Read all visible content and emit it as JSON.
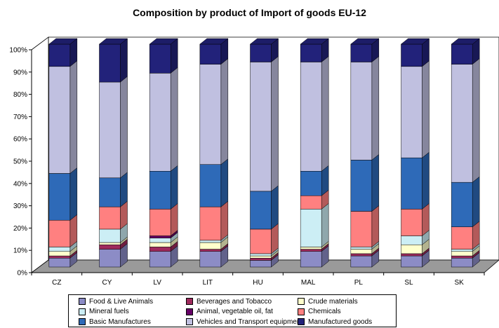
{
  "chart_data": {
    "type": "bar",
    "stacked": true,
    "title": "Composition by product of Import of goods EU-12",
    "categories": [
      "CZ",
      "CY",
      "LV",
      "LIT",
      "HU",
      "MAL",
      "PL",
      "SL",
      "SK"
    ],
    "ylim": [
      0,
      100
    ],
    "yticks": [
      "0%",
      "10%",
      "20%",
      "30%",
      "40%",
      "50%",
      "60%",
      "70%",
      "80%",
      "90%",
      "100%"
    ],
    "grid": false,
    "legend_position": "bottom",
    "series": [
      {
        "name": "Food & Live Animals",
        "color": "#8C8CC6",
        "values": [
          4,
          8,
          7,
          7,
          3,
          7,
          5,
          5,
          4
        ]
      },
      {
        "name": "Beverages and Tobacco",
        "color": "#9E2A5C",
        "values": [
          1,
          2,
          2,
          1,
          1,
          1,
          1,
          1,
          1
        ]
      },
      {
        "name": "Crude materials",
        "color": "#FFFFCC",
        "values": [
          2,
          1,
          2,
          3,
          1,
          1,
          2,
          4,
          2
        ]
      },
      {
        "name": "Mineral fuels",
        "color": "#CCEEF5",
        "values": [
          2,
          6,
          2,
          1,
          1,
          17,
          1,
          4,
          1
        ]
      },
      {
        "name": "Animal, vegetable oil, fat",
        "color": "#660066",
        "values": [
          0,
          0,
          1,
          0,
          0,
          0,
          0,
          0,
          0
        ]
      },
      {
        "name": "Chemicals",
        "color": "#FF8080",
        "values": [
          12,
          10,
          12,
          15,
          11,
          6,
          16,
          12,
          10
        ]
      },
      {
        "name": "Basic Manufactures",
        "color": "#2E6AB8",
        "values": [
          21,
          13,
          17,
          19,
          17,
          11,
          23,
          23,
          20
        ]
      },
      {
        "name": "Vehicles and Transport equipment",
        "color": "#C0C0E0",
        "values": [
          48,
          43,
          44,
          45,
          58,
          49,
          44,
          41,
          53
        ]
      },
      {
        "name": "Manufactured goods",
        "color": "#22227A",
        "values": [
          10,
          17,
          13,
          9,
          8,
          8,
          8,
          10,
          9
        ]
      }
    ]
  }
}
